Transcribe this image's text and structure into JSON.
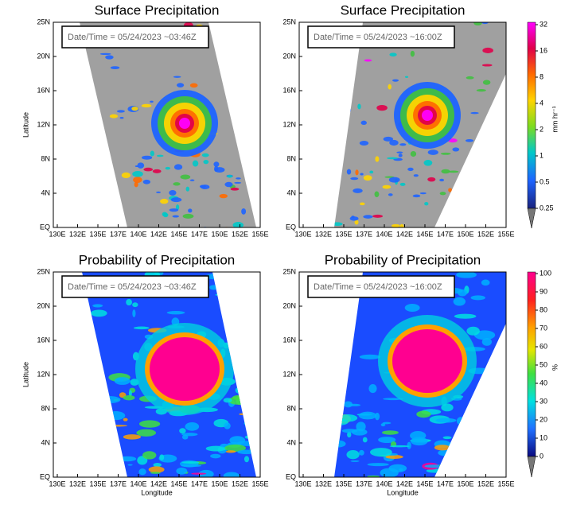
{
  "panels": [
    {
      "title": "Surface Precipitation",
      "datetime": "Date/Time = 05/24/2023   ~03:46Z"
    },
    {
      "title": "Surface Precipitation",
      "datetime": "Date/Time = 05/24/2023   ~16:00Z"
    },
    {
      "title": "Probability of Precipitation",
      "datetime": "Date/Time = 05/24/2023   ~03:46Z"
    },
    {
      "title": "Probability of Precipitation",
      "datetime": "Date/Time = 05/24/2023   ~16:00Z"
    }
  ],
  "xticks": [
    "130E",
    "132E",
    "135E",
    "137E",
    "140E",
    "142E",
    "145E",
    "147E",
    "150E",
    "152E",
    "155E"
  ],
  "yticks": [
    "25N",
    "20N",
    "16N",
    "12N",
    "8N",
    "4N",
    "EQ"
  ],
  "ylabel": "Latitude",
  "xlabel": "Longitude",
  "colorbars": [
    {
      "unit": "mm hr⁻¹",
      "ticks": [
        32,
        16,
        8,
        4,
        2,
        1,
        0.5,
        0.25
      ]
    },
    {
      "unit": "%",
      "ticks": [
        100,
        90,
        80,
        70,
        60,
        50,
        40,
        30,
        20,
        10,
        0
      ]
    }
  ]
}
